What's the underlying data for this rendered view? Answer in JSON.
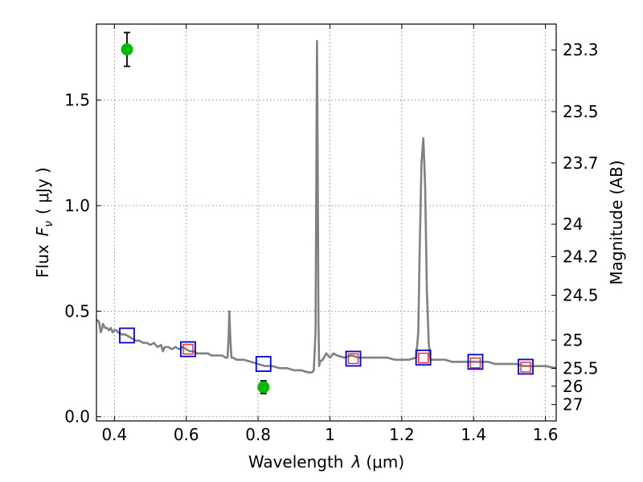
{
  "chart_data": {
    "type": "scatter",
    "xlabel_prefix": "Wavelength",
    "xlabel_symbol": "λ",
    "xlabel_unit": "(μm)",
    "ylabel_prefix": "Flux",
    "ylabel_symbol": "F",
    "ylabel_sub": "ν",
    "ylabel_unit": "( μJy )",
    "y2label": "Magnitude (AB)",
    "xlim": [
      0.35,
      1.63
    ],
    "ylim": [
      -0.02,
      1.86
    ],
    "grid": true,
    "x_ticks": [
      0.4,
      0.6,
      0.8,
      1.0,
      1.2,
      1.4,
      1.6
    ],
    "x_tick_labels": [
      "0.4",
      "0.6",
      "0.8",
      "1",
      "1.2",
      "1.4",
      "1.6"
    ],
    "y_ticks": [
      0.0,
      0.5,
      1.0,
      1.5
    ],
    "y_tick_labels": [
      "0.0",
      "0.5",
      "1.0",
      "1.5"
    ],
    "mag_tick_labels": [
      "23.3",
      "23.5",
      "23.7",
      "24",
      "24.2",
      "24.5",
      "25",
      "25.5",
      "26",
      "27"
    ],
    "colors": {
      "model": "#808080",
      "observed": "#00bb00",
      "model_box": "#0000dd",
      "obs_box": "#ff2222",
      "errorbar": "#000000"
    },
    "series": [
      {
        "name": "",
        "role": "model-spectrum",
        "style": "line",
        "x": [
          0.35,
          0.357,
          0.362,
          0.366,
          0.368,
          0.371,
          0.375,
          0.38,
          0.385,
          0.39,
          0.395,
          0.4,
          0.405,
          0.41,
          0.42,
          0.43,
          0.44,
          0.45,
          0.46,
          0.47,
          0.48,
          0.49,
          0.5,
          0.51,
          0.52,
          0.53,
          0.535,
          0.54,
          0.55,
          0.56,
          0.57,
          0.58,
          0.59,
          0.6,
          0.61,
          0.62,
          0.63,
          0.64,
          0.65,
          0.66,
          0.67,
          0.68,
          0.69,
          0.7,
          0.71,
          0.715,
          0.718,
          0.72,
          0.723,
          0.726,
          0.73,
          0.74,
          0.76,
          0.78,
          0.8,
          0.82,
          0.84,
          0.86,
          0.88,
          0.9,
          0.92,
          0.94,
          0.95,
          0.955,
          0.96,
          0.962,
          0.964,
          0.966,
          0.968,
          0.97,
          0.972,
          0.98,
          0.99,
          1.0,
          1.01,
          1.02,
          1.04,
          1.06,
          1.08,
          1.1,
          1.12,
          1.14,
          1.16,
          1.18,
          1.2,
          1.22,
          1.24,
          1.246,
          1.25,
          1.255,
          1.26,
          1.265,
          1.27,
          1.275,
          1.28,
          1.3,
          1.32,
          1.34,
          1.36,
          1.38,
          1.4,
          1.42,
          1.44,
          1.46,
          1.48,
          1.5,
          1.52,
          1.54,
          1.56,
          1.58,
          1.6,
          1.63
        ],
        "y": [
          0.46,
          0.45,
          0.4,
          0.42,
          0.44,
          0.43,
          0.42,
          0.42,
          0.41,
          0.42,
          0.4,
          0.41,
          0.41,
          0.4,
          0.39,
          0.39,
          0.38,
          0.37,
          0.36,
          0.36,
          0.35,
          0.35,
          0.34,
          0.35,
          0.33,
          0.34,
          0.31,
          0.33,
          0.33,
          0.32,
          0.33,
          0.32,
          0.33,
          0.32,
          0.31,
          0.31,
          0.3,
          0.3,
          0.3,
          0.3,
          0.29,
          0.29,
          0.29,
          0.29,
          0.28,
          0.28,
          0.38,
          0.5,
          0.36,
          0.28,
          0.28,
          0.27,
          0.27,
          0.26,
          0.25,
          0.24,
          0.24,
          0.23,
          0.23,
          0.22,
          0.22,
          0.21,
          0.21,
          0.22,
          0.4,
          1.1,
          1.78,
          1.2,
          0.45,
          0.24,
          0.26,
          0.27,
          0.3,
          0.28,
          0.3,
          0.29,
          0.28,
          0.29,
          0.28,
          0.28,
          0.28,
          0.28,
          0.28,
          0.27,
          0.27,
          0.27,
          0.28,
          0.4,
          0.8,
          1.2,
          1.32,
          1.1,
          0.6,
          0.35,
          0.27,
          0.27,
          0.27,
          0.26,
          0.26,
          0.26,
          0.26,
          0.26,
          0.26,
          0.25,
          0.25,
          0.25,
          0.25,
          0.24,
          0.24,
          0.24,
          0.24,
          0.23
        ]
      },
      {
        "name": "",
        "role": "model-photometry",
        "style": "open-square",
        "x": [
          0.435,
          0.605,
          0.815,
          1.065,
          1.26,
          1.405,
          1.545
        ],
        "y": [
          0.385,
          0.32,
          0.25,
          0.275,
          0.28,
          0.26,
          0.237
        ]
      },
      {
        "name": "",
        "role": "observed-photometry",
        "style": "open-square",
        "x": [
          0.605,
          1.065,
          1.26,
          1.405,
          1.545
        ],
        "y": [
          0.32,
          0.275,
          0.278,
          0.255,
          0.235
        ]
      },
      {
        "name": "",
        "role": "observed-detections",
        "style": "filled-circle",
        "x": [
          0.435,
          0.815
        ],
        "y": [
          1.74,
          0.14
        ],
        "yerr": [
          0.08,
          0.03
        ]
      }
    ]
  }
}
